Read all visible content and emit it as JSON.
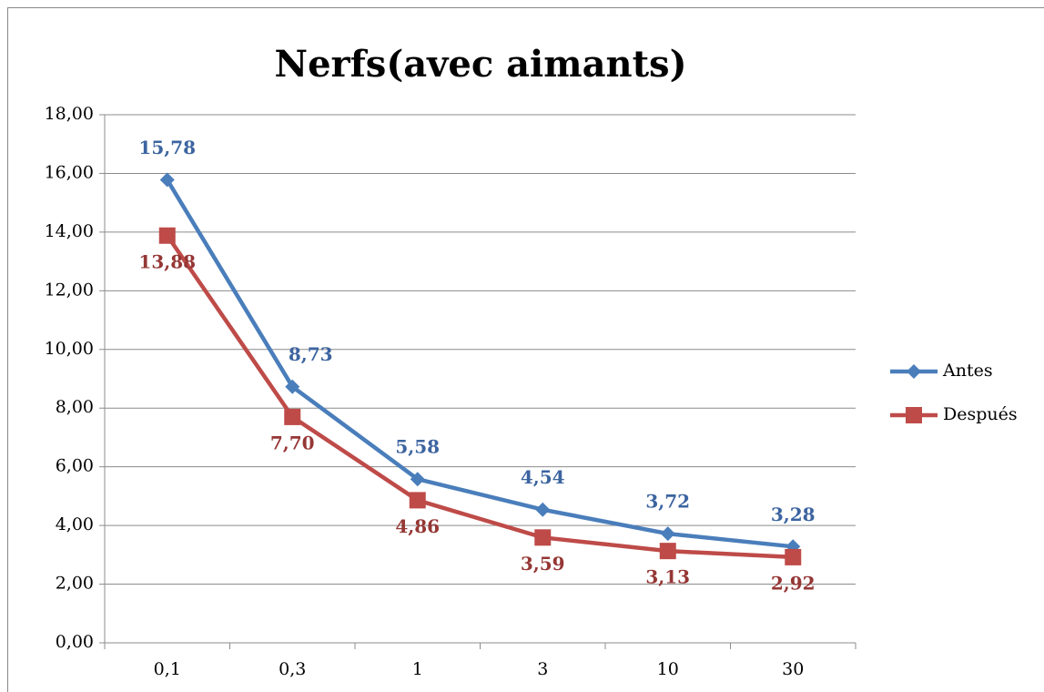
{
  "chart_data": {
    "type": "line",
    "title": "Nerfs(avec aimants)",
    "categories": [
      "0,1",
      "0,3",
      "1",
      "3",
      "10",
      "30"
    ],
    "series": [
      {
        "name": "Antes",
        "color": "#4a7ebb",
        "label_color": "#3c64a0",
        "marker": "diamond",
        "values": [
          15.78,
          8.73,
          5.58,
          4.54,
          3.72,
          3.28
        ],
        "value_labels": [
          "15,78",
          "8,73",
          "5,58",
          "4,54",
          "3,72",
          "3,28"
        ]
      },
      {
        "name": "Después",
        "color": "#be4b48",
        "label_color": "#953735",
        "marker": "square",
        "values": [
          13.88,
          7.7,
          4.86,
          3.59,
          3.13,
          2.92
        ],
        "value_labels": [
          "13,88",
          "7,70",
          "4,86",
          "3,59",
          "3,13",
          "2,92"
        ]
      }
    ],
    "ylim": [
      0,
      18
    ],
    "yticks": [
      {
        "value": 0,
        "label": "0,00"
      },
      {
        "value": 2,
        "label": "2,00"
      },
      {
        "value": 4,
        "label": "4,00"
      },
      {
        "value": 6,
        "label": "6,00"
      },
      {
        "value": 8,
        "label": "8,00"
      },
      {
        "value": 10,
        "label": "10,00"
      },
      {
        "value": 12,
        "label": "12,00"
      },
      {
        "value": 14,
        "label": "14,00"
      },
      {
        "value": 16,
        "label": "16,00"
      },
      {
        "value": 18,
        "label": "18,00"
      }
    ],
    "grid": true,
    "legend": "right"
  }
}
